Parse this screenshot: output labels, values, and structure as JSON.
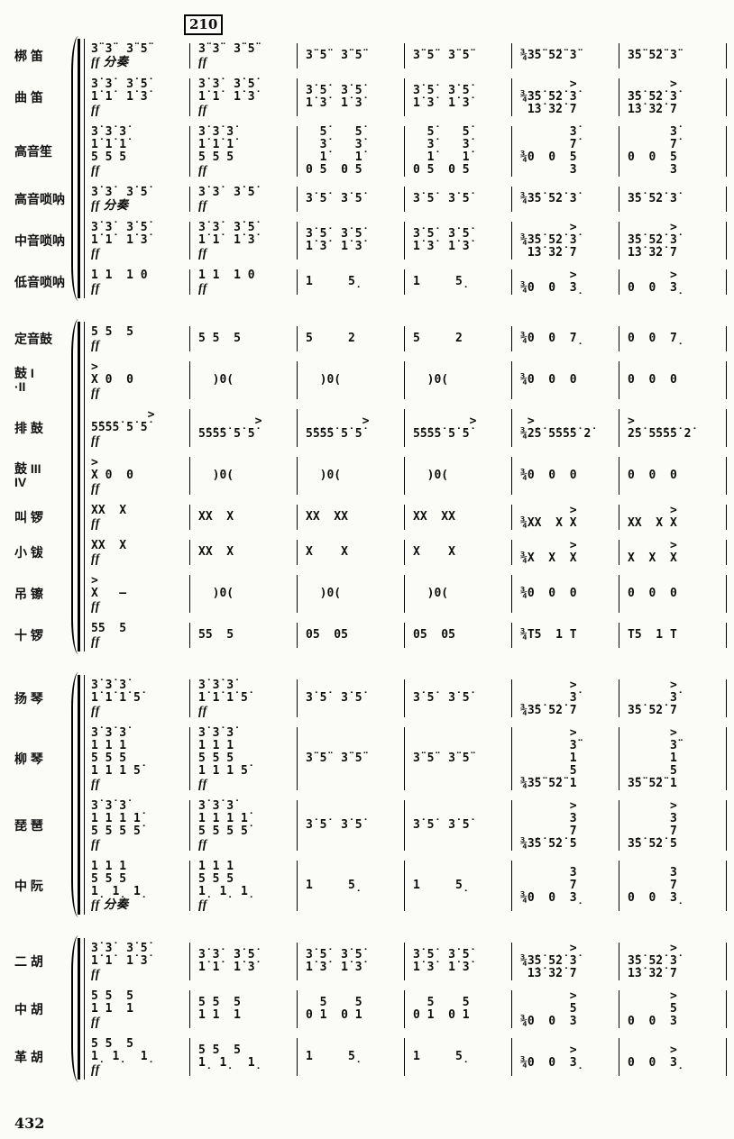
{
  "page": {
    "rehearsal_mark": "210",
    "page_number": "432"
  },
  "systems": [
    {
      "name": "winds",
      "rows": [
        {
          "label": "梆  笛",
          "measures": [
            "3̈ 3̈  3̈ 5̈\nff 分奏",
            "3̈ 3̈  3̈ 5̈\nff",
            "3̈ 5̈  3̈ 5̈",
            "3̈ 5̈  3̈ 5̈",
            "¾3̈5̈ 5̈2̈ 3̈",
            "3̈5̈ 5̈2̈ 3̈"
          ]
        },
        {
          "label": "曲  笛",
          "measures": [
            "3̇ 3̇  3̇ 5̇\n1̇ 1̇  1̇ 3̇\nff",
            "3̇ 3̇  3̇ 5̇\n1̇ 1̇  1̇ 3̇\nff",
            "3̇ 5̇  3̇ 5̇\n1̇ 3̇  1̇ 3̇",
            "3̇ 5̇  3̇ 5̇\n1̇ 3̇  1̇ 3̇",
            "       >\n¾3̇5̇ 5̇2̇ 3̇\n 1̇3̇ 3̇2̇ 7",
            "      >\n3̇5̇ 5̇2̇ 3̇\n1̇3̇ 3̇2̇ 7"
          ]
        },
        {
          "label": "高音笙",
          "measures": [
            "3̇ 3̇ 3̇\n1̇ 1̇ 1̇\n5 5 5\nff",
            "3̇ 3̇ 3̇\n1̇ 1̇ 1̇\n5 5 5\nff",
            "  5̇    5̇\n  3̇    3̇\n  1̇    1̇\n0 5  0 5",
            "  5̇    5̇\n  3̇    3̇\n  1̇    1̇\n0 5  0 5",
            "       3̇\n       7̇\n¾0  0  5\n       3",
            "      3̇\n      7̇\n0  0  5\n      3"
          ]
        },
        {
          "label": "高音唢呐",
          "measures": [
            "3̇ 3̇  3̇ 5̇\nff 分奏",
            "3̇ 3̇  3̇ 5̇\nff",
            "3̇ 5̇  3̇ 5̇",
            "3̇ 5̇  3̇ 5̇",
            "¾3̇5̇ 5̇2̇ 3̇",
            "3̇5̇ 5̇2̇ 3̇"
          ]
        },
        {
          "label": "中音唢呐",
          "measures": [
            "3̇ 3̇  3̇ 5̇\n1̇ 1̇  1̇ 3̇\nff",
            "3̇ 3̇  3̇ 5̇\n1̇ 1̇  1̇ 3̇\nff",
            "3̇ 5̇  3̇ 5̇\n1̇ 3̇  1̇ 3̇",
            "3̇ 5̇  3̇ 5̇\n1̇ 3̇  1̇ 3̇",
            "       >\n¾3̇5̇ 5̇2̇ 3̇\n 1̇3̇ 3̇2̇ 7",
            "      >\n3̇5̇ 5̇2̇ 3̇\n1̇3̇ 3̇2̇ 7"
          ]
        },
        {
          "label": "低音唢呐",
          "measures": [
            "1 1  1 0\nff",
            "1 1  1 0\nff",
            "1     5̣",
            "1     5̣",
            "       >\n¾0  0  3̣",
            "      >\n0  0  3̣"
          ]
        }
      ]
    },
    {
      "name": "percussion",
      "rows": [
        {
          "label": "定音鼓",
          "measures": [
            "5 5  5\nff",
            "5 5  5",
            "5     2",
            "5     2",
            "¾0  0  7̣",
            "0  0  7̣"
          ]
        },
        {
          "label": "鼓 I\n·II",
          "measures": [
            ">\nX 0  0\nff",
            "  )0(",
            "  )0(",
            "  )0(",
            "¾0  0  0",
            "0  0  0"
          ]
        },
        {
          "label": "排  鼓",
          "measures": [
            "        >\n5̇5̇5̇5̇ 5̇ 5̇\nff",
            "        >\n5̇5̇5̇5̇ 5̇ 5̇",
            "        >\n5̇5̇5̇5̇ 5̇ 5̇",
            "        >\n5̇5̇5̇5̇ 5̇ 5̇",
            " >\n¾2̇5̇ 5̇5̇5̇5̇ 2̇",
            ">\n2̇5̇ 5̇5̇5̇5̇ 2̇"
          ]
        },
        {
          "label": "鼓 III\nIV",
          "measures": [
            ">\nX 0  0\nff",
            "  )0(",
            "  )0(",
            "  )0(",
            "¾0  0  0",
            "0  0  0"
          ]
        },
        {
          "label": "叫  锣",
          "measures": [
            "XX  X\nff",
            "XX  X",
            "XX  XX",
            "XX  XX",
            "       >\n¾XX  X X",
            "      >\nXX  X X"
          ]
        },
        {
          "label": "小  钹",
          "measures": [
            "XX  X\nff",
            "XX  X",
            "X    X",
            "X    X",
            "       >\n¾X  X  X",
            "      >\nX  X  X"
          ]
        },
        {
          "label": "吊  镲",
          "measures": [
            ">\nX   –\nff",
            "  )0(",
            "  )0(",
            "  )0(",
            "¾0  0  0",
            "0  0  0"
          ]
        },
        {
          "label": "十  锣",
          "measures": [
            "55  5\nff",
            "55  5",
            "05  05",
            "05  05",
            "¾T5  1 T",
            "T5  1 T"
          ]
        }
      ]
    },
    {
      "name": "plucked",
      "rows": [
        {
          "label": "扬  琴",
          "measures": [
            "3̇ 3̇ 3̇\n1̇ 1̇ 1̇ 5̇\nff",
            "3̇ 3̇ 3̇\n1̇ 1̇ 1̇ 5̇\nff",
            "3̇ 5̇  3̇ 5̇",
            "3̇ 5̇  3̇ 5̇",
            "       >\n       3̇\n¾3̇5̇ 5̇2̇ 7",
            "      >\n      3̇\n3̇5̇ 5̇2̇ 7"
          ]
        },
        {
          "label": "柳  琴",
          "measures": [
            "3̇ 3̇ 3̇\n1 1 1\n5 5 5\n1 1 1 5̇\nff",
            "3̇ 3̇ 3̇\n1 1 1\n5 5 5\n1 1 1 5̇\nff",
            "3̈ 5̈  3̈ 5̈",
            "3̈ 5̈  3̈ 5̈",
            "       >\n       3̈\n       1\n       5\n¾3̈5̈ 5̈2̈ 1",
            "      >\n      3̈\n      1\n      5\n3̈5̈ 5̈2̈ 1"
          ]
        },
        {
          "label": "琵  琶",
          "measures": [
            "3̇ 3̇ 3̇\n1 1 1 1̇\n5 5 5 5̇\nff",
            "3̇ 3̇ 3̇\n1 1 1 1̇\n5 5 5 5̇\nff",
            "3̇ 5̇  3̇ 5̇",
            "3̇ 5̇  3̇ 5̇",
            "       >\n       3\n       7\n¾3̇5̇ 5̇2̇ 5",
            "      >\n      3\n      7\n3̇5̇ 5̇2̇ 5"
          ]
        },
        {
          "label": "中  阮",
          "measures": [
            "1 1 1\n5 5 5\n1̣ 1̣ 1̣\nff 分奏",
            "1 1 1\n5 5 5\n1̣ 1̣ 1̣\nff",
            "1     5̣",
            "1     5̣",
            "       3\n       7\n¾0  0  3̣",
            "      3\n      7\n0  0  3̣"
          ]
        }
      ]
    },
    {
      "name": "bowed",
      "rows": [
        {
          "label": "二  胡",
          "measures": [
            "3̇ 3̇  3̇ 5̇\n1̇ 1̇  1̇ 3̇\nff",
            "3̇ 3̇  3̇ 5̇\n1̇ 1̇  1̇ 3̇",
            "3̇ 5̇  3̇ 5̇\n1̇ 3̇  1̇ 3̇",
            "3̇ 5̇  3̇ 5̇\n1̇ 3̇  1̇ 3̇",
            "       >\n¾3̇5̇ 5̇2̇ 3̇\n 1̇3̇ 3̇2̇ 7",
            "      >\n3̇5̇ 5̇2̇ 3̇\n1̇3̇ 3̇2̇ 7"
          ]
        },
        {
          "label": "中  胡",
          "measures": [
            "5 5  5\n1 1  1\nff",
            "5 5  5\n1 1  1",
            "  5    5\n0 1  0 1",
            "  5    5\n0 1  0 1",
            "       >\n       5\n¾0  0  3",
            "      >\n      5\n0  0  3"
          ]
        },
        {
          "label": "革  胡",
          "measures": [
            "5 5  5\n1̣ 1̣  1̣\nff",
            "5 5  5\n1̣ 1̣  1̣",
            "1     5̣",
            "1     5̣",
            "       >\n¾0  0  3̣",
            "      >\n0  0  3̣"
          ]
        }
      ]
    }
  ]
}
